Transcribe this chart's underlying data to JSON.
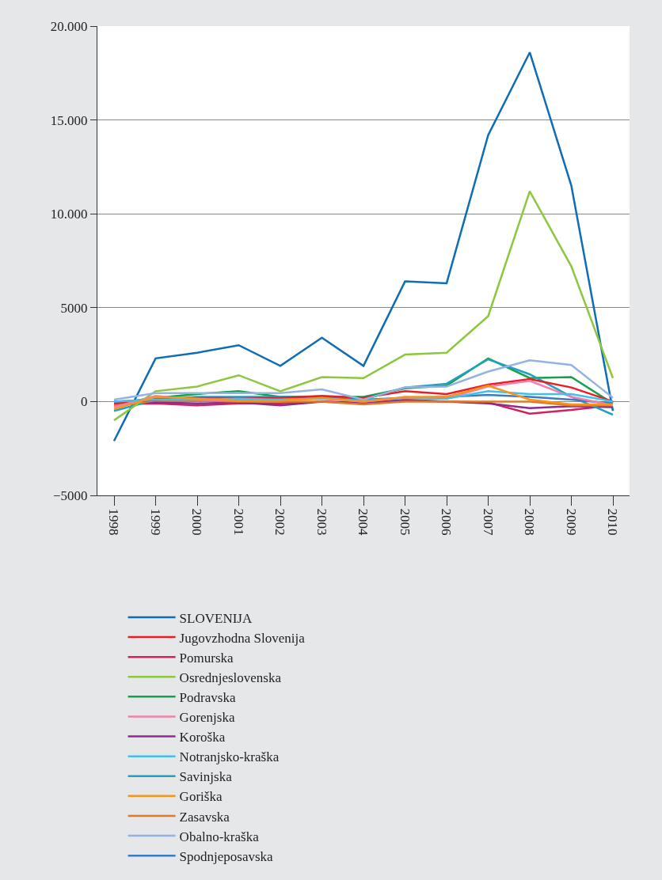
{
  "chart_data": {
    "type": "line",
    "categories": [
      "1998",
      "1999",
      "2000",
      "2001",
      "2002",
      "2003",
      "2004",
      "2005",
      "2006",
      "2007",
      "2008",
      "2009",
      "2010"
    ],
    "ylim": [
      -5000,
      20000
    ],
    "yticks": [
      {
        "value": -5000,
        "label": "−5000"
      },
      0,
      5000,
      {
        "value": 10000,
        "label": "10.000"
      },
      {
        "value": 15000,
        "label": "15.000"
      },
      {
        "value": 20000,
        "label": "20.000"
      }
    ],
    "grid": "y",
    "legend": "bottom",
    "marker": "none",
    "line_style": "solid",
    "series": [
      {
        "name": "SLOVENIJA",
        "color": "#0f6db5",
        "values": [
          -2100,
          2300,
          2600,
          3000,
          1900,
          3400,
          1900,
          6400,
          6300,
          14200,
          18600,
          11500,
          -500
        ]
      },
      {
        "name": "Pomurska",
        "color": "#d51f5e",
        "values": [
          -150,
          -100,
          -200,
          -100,
          -100,
          0,
          -50,
          100,
          0,
          -50,
          -650,
          -450,
          -200
        ]
      },
      {
        "name": "Podravska",
        "color": "#13a24b",
        "values": [
          -100,
          200,
          400,
          550,
          250,
          250,
          250,
          700,
          850,
          2300,
          1250,
          1300,
          -100
        ]
      },
      {
        "name": "Koroška",
        "color": "#8e2c8e",
        "values": [
          -100,
          -50,
          -100,
          -50,
          -200,
          0,
          -100,
          50,
          0,
          -100,
          -350,
          -250,
          -300
        ]
      },
      {
        "name": "Savinjska",
        "color": "#21a1c0",
        "values": [
          -500,
          100,
          250,
          250,
          250,
          250,
          100,
          750,
          950,
          2250,
          1450,
          250,
          -700
        ]
      },
      {
        "name": "Zasavska",
        "color": "#e07a26",
        "values": [
          -200,
          50,
          50,
          0,
          0,
          0,
          -150,
          0,
          0,
          0,
          0,
          -200,
          -200
        ]
      },
      {
        "name": "Spodnjeposavska",
        "color": "#3b7bc4",
        "values": [
          0,
          100,
          200,
          200,
          200,
          250,
          100,
          200,
          250,
          350,
          250,
          100,
          -100
        ]
      },
      {
        "name": "Jugovzhodna Slovenija",
        "color": "#ec1c24",
        "values": [
          -100,
          100,
          150,
          150,
          200,
          300,
          200,
          550,
          400,
          900,
          1200,
          750,
          0
        ]
      },
      {
        "name": "Osrednjeslovenska",
        "color": "#8dc63f",
        "values": [
          -1000,
          550,
          800,
          1400,
          550,
          1300,
          1250,
          2500,
          2600,
          4550,
          11200,
          7200,
          1250
        ]
      },
      {
        "name": "Gorenjska",
        "color": "#f17fb1",
        "values": [
          -300,
          300,
          100,
          50,
          100,
          150,
          0,
          200,
          150,
          800,
          1100,
          250,
          -200
        ]
      },
      {
        "name": "Notranjsko-kraška",
        "color": "#3fc0ef",
        "values": [
          0,
          100,
          100,
          150,
          100,
          150,
          50,
          200,
          150,
          550,
          400,
          400,
          0
        ]
      },
      {
        "name": "Goriška",
        "color": "#f7941d",
        "values": [
          -400,
          250,
          150,
          50,
          50,
          200,
          0,
          250,
          250,
          850,
          100,
          -150,
          -150
        ]
      },
      {
        "name": "Obalno-kraška",
        "color": "#94b3e0",
        "values": [
          100,
          450,
          450,
          450,
          450,
          650,
          100,
          750,
          800,
          1600,
          2200,
          1950,
          200
        ]
      }
    ]
  }
}
